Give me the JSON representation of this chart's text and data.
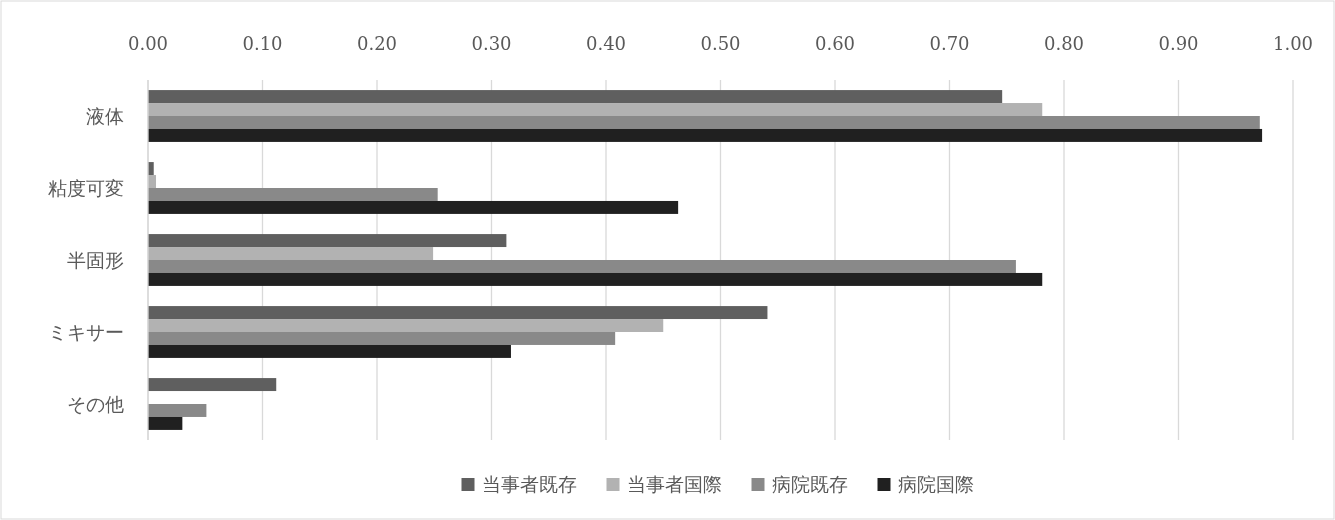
{
  "chart_data": {
    "type": "bar",
    "orientation": "horizontal",
    "categories": [
      "液体",
      "粘度可変",
      "半固形",
      "ミキサー",
      "その他"
    ],
    "series": [
      {
        "name": "当事者既存",
        "color": "#5f5f5f",
        "values": [
          0.746,
          0.005,
          0.313,
          0.541,
          0.112
        ]
      },
      {
        "name": "当事者国際",
        "color": "#b2b2b2",
        "values": [
          0.781,
          0.007,
          0.249,
          0.45,
          0
        ]
      },
      {
        "name": "病院既存",
        "color": "#898989",
        "values": [
          0.971,
          0.253,
          0.758,
          0.408,
          0.051
        ]
      },
      {
        "name": "病院国際",
        "color": "#202020",
        "values": [
          0.973,
          0.463,
          0.781,
          0.317,
          0.03
        ]
      }
    ],
    "xlim": [
      0,
      1
    ],
    "xticks": [
      {
        "value": 0,
        "label": "0.00"
      },
      {
        "value": 0.1,
        "label": "0.10"
      },
      {
        "value": 0.2,
        "label": "0.20"
      },
      {
        "value": 0.3,
        "label": "0.30"
      },
      {
        "value": 0.4,
        "label": "0.40"
      },
      {
        "value": 0.5,
        "label": "0.50"
      },
      {
        "value": 0.6,
        "label": "0.60"
      },
      {
        "value": 0.7,
        "label": "0.70"
      },
      {
        "value": 0.8,
        "label": "0.80"
      },
      {
        "value": 0.9,
        "label": "0.90"
      },
      {
        "value": 1,
        "label": "1.00"
      }
    ],
    "grid": "x",
    "legend": "bottom"
  }
}
